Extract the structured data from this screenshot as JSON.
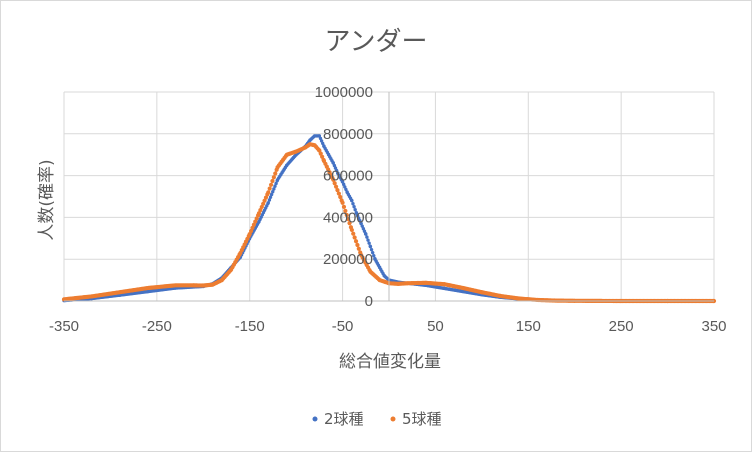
{
  "chart_data": {
    "type": "scatter",
    "title": "アンダー",
    "xlabel": "総合値変化量",
    "ylabel": "人数(確率)",
    "xlim": [
      -350,
      350
    ],
    "ylim": [
      0,
      1000000
    ],
    "x_ticks": [
      "-350",
      "-250",
      "-150",
      "-50",
      "50",
      "150",
      "250",
      "350"
    ],
    "y_ticks": [
      "0",
      "200000",
      "400000",
      "600000",
      "800000",
      "1000000"
    ],
    "grid": true,
    "legend_position": "bottom",
    "series": [
      {
        "name": "2球種",
        "color": "#4472c4",
        "marker": "dot",
        "x": [
          -350,
          -320,
          -290,
          -260,
          -230,
          -200,
          -190,
          -180,
          -170,
          -160,
          -150,
          -140,
          -130,
          -120,
          -110,
          -100,
          -95,
          -90,
          -85,
          -80,
          -75,
          -70,
          -65,
          -60,
          -55,
          -50,
          -45,
          -40,
          -35,
          -30,
          -25,
          -20,
          -15,
          -10,
          -5,
          0,
          10,
          20,
          40,
          60,
          80,
          100,
          120,
          140,
          160,
          180,
          200,
          250,
          300,
          350
        ],
        "y": [
          2000,
          12000,
          28000,
          45000,
          62000,
          70000,
          82000,
          110000,
          160000,
          210000,
          300000,
          380000,
          470000,
          580000,
          650000,
          700000,
          720000,
          740000,
          770000,
          790000,
          790000,
          740000,
          700000,
          660000,
          610000,
          570000,
          520000,
          480000,
          420000,
          370000,
          320000,
          260000,
          200000,
          160000,
          120000,
          100000,
          90000,
          85000,
          75000,
          60000,
          45000,
          30000,
          18000,
          10000,
          5000,
          2000,
          1000,
          0,
          0,
          0
        ]
      },
      {
        "name": "5球種",
        "color": "#ed7d31",
        "marker": "dot",
        "x": [
          -350,
          -320,
          -290,
          -260,
          -230,
          -210,
          -200,
          -190,
          -180,
          -170,
          -160,
          -150,
          -140,
          -130,
          -120,
          -110,
          -100,
          -90,
          -85,
          -80,
          -75,
          -70,
          -60,
          -50,
          -40,
          -30,
          -20,
          -10,
          0,
          10,
          20,
          40,
          60,
          80,
          100,
          120,
          140,
          160,
          180,
          200,
          250,
          300,
          350
        ],
        "y": [
          8000,
          22000,
          42000,
          62000,
          75000,
          75000,
          74000,
          78000,
          100000,
          150000,
          230000,
          320000,
          420000,
          520000,
          640000,
          700000,
          715000,
          735000,
          750000,
          745000,
          720000,
          670000,
          580000,
          470000,
          340000,
          220000,
          140000,
          100000,
          85000,
          82000,
          85000,
          87000,
          80000,
          62000,
          42000,
          24000,
          12000,
          5000,
          2000,
          1000,
          0,
          0,
          0
        ]
      }
    ]
  }
}
